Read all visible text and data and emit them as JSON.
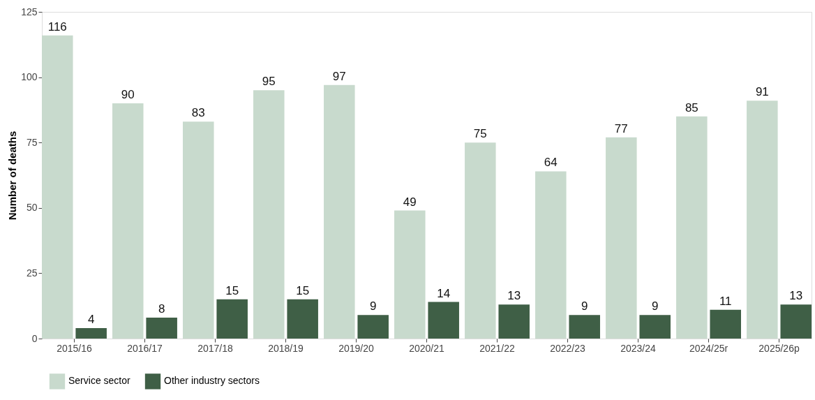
{
  "chart_data": {
    "type": "bar",
    "ylabel": "Number of deaths",
    "categories": [
      "2015/16",
      "2016/17",
      "2017/18",
      "2018/19",
      "2019/20",
      "2020/21",
      "2021/22",
      "2022/23",
      "2023/24",
      "2024/25r",
      "2025/26p"
    ],
    "series": [
      {
        "name": "Service sector",
        "color": "#c8dacd",
        "values": [
          116,
          90,
          83,
          95,
          97,
          49,
          75,
          64,
          77,
          85,
          91
        ]
      },
      {
        "name": "Other industry sectors",
        "color": "#3f5f46",
        "values": [
          4,
          8,
          15,
          15,
          9,
          14,
          13,
          9,
          9,
          11,
          13
        ]
      }
    ],
    "ylim": [
      0,
      125
    ],
    "yticks": [
      0,
      25,
      50,
      75,
      100,
      125
    ],
    "grid": false,
    "legend": "bottom",
    "data_labels": true
  }
}
